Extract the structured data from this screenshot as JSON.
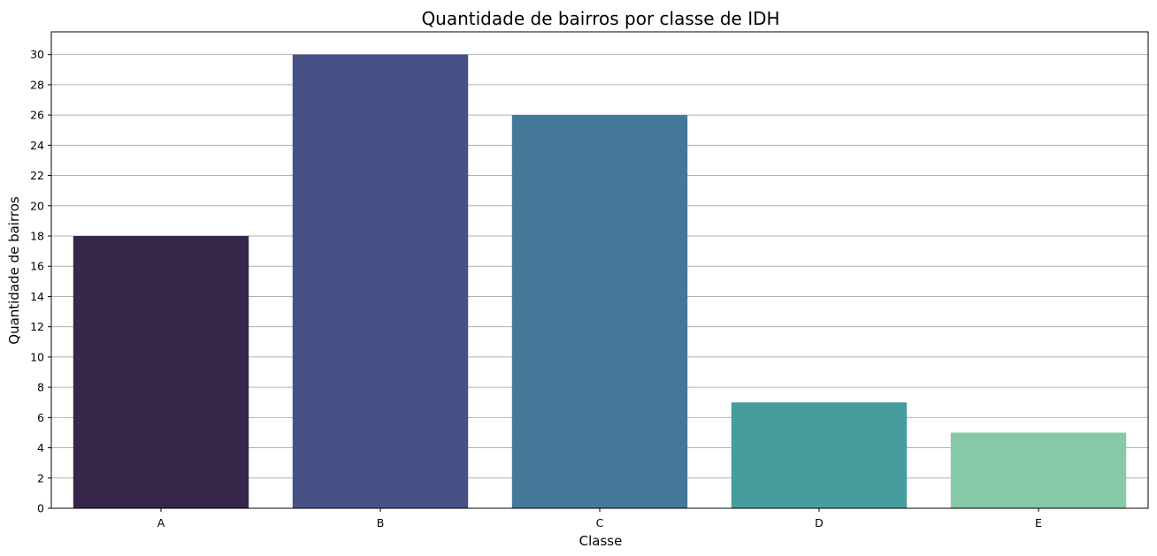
{
  "chart_data": {
    "type": "bar",
    "title": "Quantidade de bairros por classe de IDH",
    "xlabel": "Classe",
    "ylabel": "Quantidade de bairros",
    "categories": [
      "A",
      "B",
      "C",
      "D",
      "E"
    ],
    "values": [
      18,
      30,
      26,
      7,
      5
    ],
    "colors": [
      "#35264a",
      "#475186",
      "#437898",
      "#479d9d",
      "#85c9a9"
    ],
    "ylim": [
      0,
      31.5
    ],
    "yticks": [
      0,
      2,
      4,
      6,
      8,
      10,
      12,
      14,
      16,
      18,
      20,
      22,
      24,
      26,
      28,
      30
    ],
    "grid": "y-axis",
    "legend": "none"
  }
}
